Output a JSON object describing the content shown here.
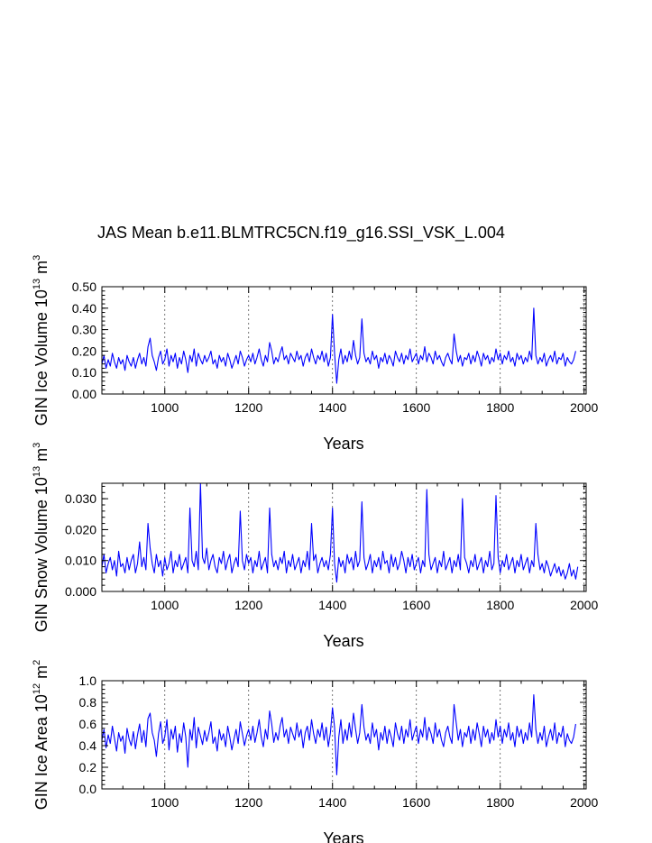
{
  "figure": {
    "title": "JAS Mean b.e11.BLMTRC5CN.f19_g16.SSI_VSK_L.004"
  },
  "chart_data": [
    {
      "type": "line",
      "name": "ice-volume",
      "ylabel_main": "GIN Ice Volume 10",
      "ylabel_exp1": "13",
      "ylabel_mid": " m",
      "ylabel_exp2": "3",
      "xlabel": "Years",
      "xlim": [
        850,
        2005
      ],
      "ylim": [
        0,
        0.5
      ],
      "x_ticks": [
        "1000",
        "1200",
        "1400",
        "1600",
        "1800",
        "2000"
      ],
      "y_ticks": [
        "0.00",
        "0.10",
        "0.20",
        "0.30",
        "0.40",
        "0.50"
      ],
      "grid": "vertical dashed at 1000, 1200, 1400, 1600, 1800, 2000",
      "series_color": "#0000ff",
      "series": [
        {
          "name": "GIN Ice Volume",
          "x_start": 850,
          "x_step": 5,
          "values": [
            0.14,
            0.18,
            0.12,
            0.16,
            0.13,
            0.19,
            0.15,
            0.12,
            0.17,
            0.14,
            0.16,
            0.11,
            0.18,
            0.15,
            0.13,
            0.17,
            0.12,
            0.16,
            0.19,
            0.14,
            0.17,
            0.13,
            0.22,
            0.26,
            0.18,
            0.15,
            0.11,
            0.17,
            0.2,
            0.14,
            0.16,
            0.21,
            0.13,
            0.18,
            0.15,
            0.19,
            0.12,
            0.17,
            0.14,
            0.2,
            0.16,
            0.1,
            0.18,
            0.15,
            0.21,
            0.13,
            0.19,
            0.16,
            0.14,
            0.18,
            0.15,
            0.17,
            0.2,
            0.14,
            0.16,
            0.12,
            0.18,
            0.15,
            0.17,
            0.13,
            0.19,
            0.16,
            0.12,
            0.15,
            0.18,
            0.14,
            0.2,
            0.17,
            0.13,
            0.16,
            0.18,
            0.15,
            0.19,
            0.14,
            0.17,
            0.21,
            0.16,
            0.13,
            0.18,
            0.15,
            0.24,
            0.2,
            0.14,
            0.17,
            0.15,
            0.19,
            0.22,
            0.16,
            0.18,
            0.14,
            0.19,
            0.17,
            0.15,
            0.2,
            0.16,
            0.18,
            0.13,
            0.17,
            0.19,
            0.15,
            0.21,
            0.17,
            0.14,
            0.18,
            0.16,
            0.2,
            0.15,
            0.19,
            0.13,
            0.17,
            0.37,
            0.19,
            0.05,
            0.16,
            0.21,
            0.14,
            0.18,
            0.15,
            0.2,
            0.16,
            0.25,
            0.18,
            0.14,
            0.17,
            0.35,
            0.19,
            0.15,
            0.17,
            0.14,
            0.2,
            0.16,
            0.18,
            0.12,
            0.17,
            0.15,
            0.19,
            0.14,
            0.18,
            0.16,
            0.13,
            0.2,
            0.17,
            0.15,
            0.19,
            0.14,
            0.18,
            0.16,
            0.21,
            0.15,
            0.17,
            0.19,
            0.14,
            0.18,
            0.16,
            0.22,
            0.15,
            0.19,
            0.17,
            0.14,
            0.2,
            0.16,
            0.18,
            0.15,
            0.13,
            0.17,
            0.19,
            0.16,
            0.14,
            0.28,
            0.2,
            0.15,
            0.18,
            0.13,
            0.17,
            0.16,
            0.19,
            0.14,
            0.18,
            0.15,
            0.2,
            0.17,
            0.13,
            0.19,
            0.16,
            0.18,
            0.14,
            0.17,
            0.15,
            0.21,
            0.16,
            0.19,
            0.14,
            0.18,
            0.16,
            0.2,
            0.15,
            0.17,
            0.13,
            0.19,
            0.16,
            0.18,
            0.14,
            0.17,
            0.15,
            0.2,
            0.16,
            0.4,
            0.18,
            0.14,
            0.17,
            0.15,
            0.19,
            0.13,
            0.16,
            0.18,
            0.15,
            0.2,
            0.14,
            0.17,
            0.16,
            0.19,
            0.13,
            0.17,
            0.15,
            0.14,
            0.16,
            0.2
          ]
        }
      ]
    },
    {
      "type": "line",
      "name": "snow-volume",
      "ylabel_main": "GIN Snow Volume 10",
      "ylabel_exp1": "13",
      "ylabel_mid": " m",
      "ylabel_exp2": "3",
      "xlabel": "Years",
      "xlim": [
        850,
        2005
      ],
      "ylim": [
        0,
        0.035
      ],
      "x_ticks": [
        "1000",
        "1200",
        "1400",
        "1600",
        "1800",
        "2000"
      ],
      "y_ticks": [
        "0.000",
        "0.010",
        "0.020",
        "0.030"
      ],
      "grid": "vertical dashed at 1000, 1200, 1400, 1600, 1800, 2000",
      "series_color": "#0000ff",
      "series": [
        {
          "name": "GIN Snow Volume",
          "x_start": 850,
          "x_step": 5,
          "values": [
            0.008,
            0.012,
            0.006,
            0.009,
            0.011,
            0.007,
            0.01,
            0.005,
            0.013,
            0.008,
            0.009,
            0.006,
            0.011,
            0.007,
            0.01,
            0.012,
            0.006,
            0.009,
            0.016,
            0.008,
            0.011,
            0.007,
            0.022,
            0.014,
            0.009,
            0.006,
            0.012,
            0.008,
            0.01,
            0.005,
            0.011,
            0.007,
            0.009,
            0.013,
            0.006,
            0.01,
            0.008,
            0.012,
            0.007,
            0.009,
            0.011,
            0.006,
            0.027,
            0.01,
            0.008,
            0.013,
            0.007,
            0.035,
            0.011,
            0.009,
            0.014,
            0.007,
            0.01,
            0.012,
            0.008,
            0.006,
            0.011,
            0.009,
            0.013,
            0.007,
            0.01,
            0.012,
            0.006,
            0.009,
            0.011,
            0.008,
            0.026,
            0.01,
            0.007,
            0.012,
            0.009,
            0.011,
            0.006,
            0.01,
            0.008,
            0.013,
            0.007,
            0.009,
            0.011,
            0.006,
            0.027,
            0.012,
            0.008,
            0.01,
            0.007,
            0.011,
            0.009,
            0.013,
            0.006,
            0.01,
            0.008,
            0.012,
            0.007,
            0.009,
            0.011,
            0.006,
            0.01,
            0.008,
            0.013,
            0.007,
            0.022,
            0.01,
            0.012,
            0.006,
            0.009,
            0.011,
            0.008,
            0.01,
            0.007,
            0.012,
            0.027,
            0.009,
            0.003,
            0.011,
            0.008,
            0.01,
            0.006,
            0.012,
            0.009,
            0.011,
            0.007,
            0.013,
            0.008,
            0.01,
            0.029,
            0.011,
            0.007,
            0.009,
            0.012,
            0.006,
            0.01,
            0.008,
            0.011,
            0.007,
            0.013,
            0.009,
            0.01,
            0.006,
            0.012,
            0.008,
            0.011,
            0.007,
            0.009,
            0.013,
            0.01,
            0.006,
            0.011,
            0.008,
            0.012,
            0.007,
            0.009,
            0.011,
            0.006,
            0.01,
            0.008,
            0.033,
            0.012,
            0.007,
            0.009,
            0.011,
            0.006,
            0.01,
            0.008,
            0.013,
            0.007,
            0.009,
            0.011,
            0.006,
            0.01,
            0.008,
            0.012,
            0.007,
            0.03,
            0.011,
            0.009,
            0.006,
            0.01,
            0.008,
            0.012,
            0.007,
            0.009,
            0.011,
            0.006,
            0.01,
            0.008,
            0.013,
            0.007,
            0.009,
            0.031,
            0.011,
            0.006,
            0.01,
            0.008,
            0.012,
            0.007,
            0.009,
            0.011,
            0.006,
            0.01,
            0.008,
            0.012,
            0.007,
            0.009,
            0.011,
            0.006,
            0.01,
            0.008,
            0.022,
            0.012,
            0.007,
            0.009,
            0.006,
            0.01,
            0.008,
            0.005,
            0.007,
            0.009,
            0.006,
            0.008,
            0.005,
            0.007,
            0.004,
            0.006,
            0.009,
            0.005,
            0.007,
            0.004,
            0.008
          ]
        }
      ]
    },
    {
      "type": "line",
      "name": "ice-area",
      "ylabel_main": "GIN Ice Area 10",
      "ylabel_exp1": "12",
      "ylabel_mid": " m",
      "ylabel_exp2": "2",
      "xlabel": "Years",
      "xlim": [
        850,
        2005
      ],
      "ylim": [
        0,
        1.0
      ],
      "x_ticks": [
        "1000",
        "1200",
        "1400",
        "1600",
        "1800",
        "2000"
      ],
      "y_ticks": [
        "0.0",
        "0.2",
        "0.4",
        "0.6",
        "0.8",
        "1.0"
      ],
      "grid": "vertical dashed at 1000, 1200, 1400, 1600, 1800, 2000",
      "series_color": "#0000ff",
      "series": [
        {
          "name": "GIN Ice Area",
          "x_start": 850,
          "x_step": 5,
          "values": [
            0.45,
            0.55,
            0.38,
            0.5,
            0.42,
            0.58,
            0.47,
            0.35,
            0.52,
            0.44,
            0.49,
            0.33,
            0.56,
            0.46,
            0.4,
            0.53,
            0.37,
            0.5,
            0.6,
            0.43,
            0.54,
            0.39,
            0.65,
            0.7,
            0.52,
            0.45,
            0.3,
            0.51,
            0.62,
            0.42,
            0.48,
            0.64,
            0.36,
            0.55,
            0.46,
            0.58,
            0.34,
            0.51,
            0.43,
            0.61,
            0.48,
            0.2,
            0.55,
            0.45,
            0.66,
            0.38,
            0.57,
            0.49,
            0.41,
            0.54,
            0.44,
            0.52,
            0.62,
            0.42,
            0.48,
            0.35,
            0.55,
            0.45,
            0.51,
            0.39,
            0.58,
            0.48,
            0.36,
            0.46,
            0.55,
            0.42,
            0.62,
            0.51,
            0.4,
            0.49,
            0.55,
            0.45,
            0.58,
            0.43,
            0.52,
            0.64,
            0.48,
            0.39,
            0.55,
            0.46,
            0.72,
            0.6,
            0.43,
            0.52,
            0.45,
            0.58,
            0.66,
            0.48,
            0.55,
            0.42,
            0.57,
            0.51,
            0.45,
            0.61,
            0.48,
            0.55,
            0.38,
            0.52,
            0.58,
            0.45,
            0.64,
            0.51,
            0.42,
            0.55,
            0.48,
            0.61,
            0.45,
            0.57,
            0.39,
            0.52,
            0.75,
            0.57,
            0.13,
            0.48,
            0.64,
            0.42,
            0.55,
            0.45,
            0.61,
            0.48,
            0.7,
            0.55,
            0.42,
            0.52,
            0.78,
            0.57,
            0.45,
            0.51,
            0.42,
            0.61,
            0.48,
            0.55,
            0.36,
            0.52,
            0.45,
            0.58,
            0.42,
            0.55,
            0.48,
            0.39,
            0.61,
            0.51,
            0.45,
            0.58,
            0.42,
            0.55,
            0.48,
            0.64,
            0.45,
            0.52,
            0.58,
            0.42,
            0.55,
            0.48,
            0.66,
            0.45,
            0.57,
            0.51,
            0.42,
            0.61,
            0.48,
            0.55,
            0.45,
            0.39,
            0.52,
            0.58,
            0.48,
            0.42,
            0.78,
            0.61,
            0.45,
            0.55,
            0.39,
            0.52,
            0.48,
            0.58,
            0.42,
            0.55,
            0.45,
            0.61,
            0.51,
            0.39,
            0.58,
            0.48,
            0.55,
            0.42,
            0.52,
            0.45,
            0.64,
            0.48,
            0.58,
            0.42,
            0.55,
            0.48,
            0.61,
            0.45,
            0.52,
            0.39,
            0.58,
            0.48,
            0.55,
            0.42,
            0.52,
            0.45,
            0.61,
            0.48,
            0.87,
            0.55,
            0.42,
            0.52,
            0.45,
            0.58,
            0.39,
            0.48,
            0.55,
            0.45,
            0.61,
            0.42,
            0.52,
            0.48,
            0.58,
            0.39,
            0.51,
            0.45,
            0.42,
            0.48,
            0.6
          ]
        }
      ]
    }
  ]
}
